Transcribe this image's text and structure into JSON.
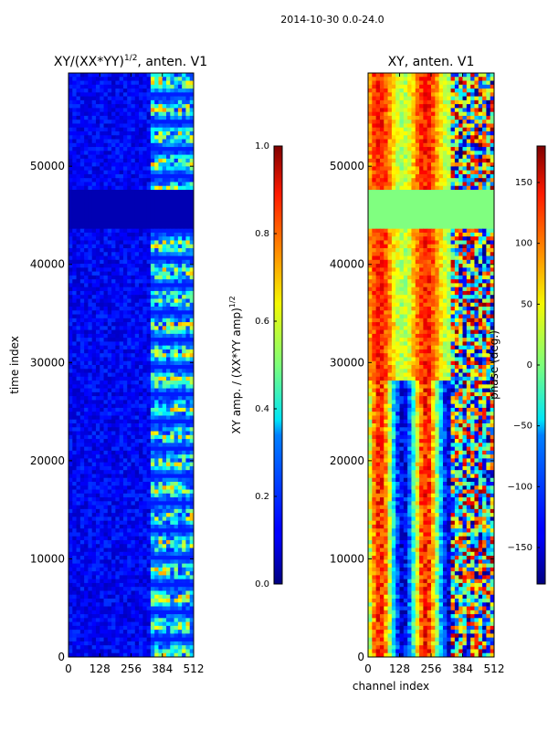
{
  "suptitle": "2014-10-30 0.0-24.0",
  "chart_data": [
    {
      "type": "heatmap",
      "title_prefix": "XY/(XX*YY)",
      "title_exponent": "1/2",
      "title_suffix": ", anten. V1",
      "xlabel": "",
      "ylabel": "time index",
      "xlim": [
        0,
        512
      ],
      "ylim": [
        0,
        59500
      ],
      "xticks": [
        0,
        128,
        256,
        384,
        512
      ],
      "yticks": [
        0,
        10000,
        20000,
        30000,
        40000,
        50000
      ],
      "colorbar": {
        "label_prefix": "XY amp. / (XX*YY amp)",
        "label_exponent": "1/2",
        "range": [
          0.0,
          1.0
        ],
        "ticks": [
          "0.0",
          "0.2",
          "0.4",
          "0.6",
          "0.8",
          "1.0"
        ],
        "colormap": "jet"
      }
    },
    {
      "type": "heatmap",
      "title": "XY, anten. V1",
      "xlabel": "channel index",
      "ylabel": "",
      "xlim": [
        0,
        512
      ],
      "ylim": [
        0,
        59500
      ],
      "xticks": [
        0,
        128,
        256,
        384,
        512
      ],
      "yticks": [
        0,
        10000,
        20000,
        30000,
        40000,
        50000
      ],
      "colorbar": {
        "label": "phase (deg.)",
        "range": [
          -180,
          180
        ],
        "ticks": [
          150,
          100,
          50,
          0,
          -50,
          -100,
          -150
        ],
        "tick_labels": [
          "150",
          "100",
          "50",
          "0",
          "−50",
          "−100",
          "−150"
        ],
        "colormap": "jet"
      }
    }
  ]
}
